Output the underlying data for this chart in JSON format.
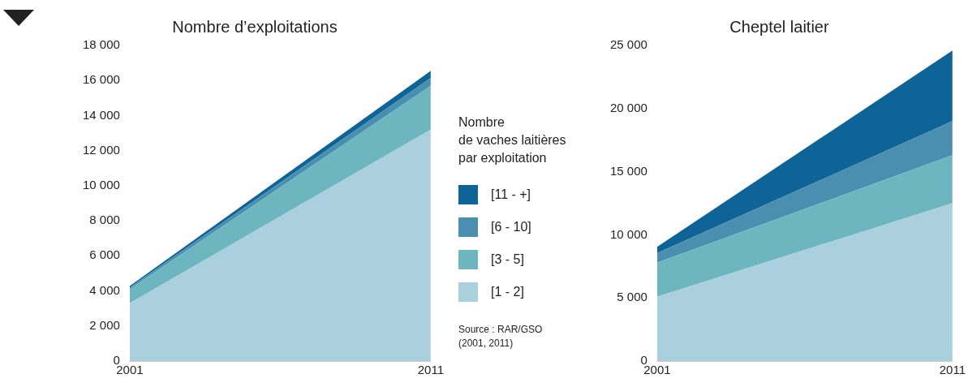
{
  "chart_data": [
    {
      "type": "area",
      "title": "Nombre d’exploitations",
      "stacked": true,
      "x": [
        "2001",
        "2011"
      ],
      "xlim": [
        "2001",
        "2011"
      ],
      "xticks": [
        "2001",
        "2011"
      ],
      "ylim": [
        0,
        18000
      ],
      "yticks": [
        {
          "value": 0,
          "label": "0"
        },
        {
          "value": 2000,
          "label": "2 000"
        },
        {
          "value": 4000,
          "label": "4 000"
        },
        {
          "value": 6000,
          "label": "6 000"
        },
        {
          "value": 8000,
          "label": "8 000"
        },
        {
          "value": 10000,
          "label": "10 000"
        },
        {
          "value": 12000,
          "label": "12 000"
        },
        {
          "value": 14000,
          "label": "14 000"
        },
        {
          "value": 16000,
          "label": "16 000"
        },
        {
          "value": 18000,
          "label": "18 000"
        }
      ],
      "grid": false,
      "legend": "right",
      "legend_title": "Nombre\nde vaches laitières\npar exploitation",
      "annotations": [
        "Source : RAR/GSO\n(2001, 2011)"
      ],
      "series": [
        {
          "name": "[1 - 2]",
          "color": "#aad0dd",
          "values": [
            3300,
            13200
          ]
        },
        {
          "name": "[3 - 5]",
          "color": "#6db6bf",
          "values": [
            800,
            2500
          ]
        },
        {
          "name": "[6 - 10]",
          "color": "#4a8fb0",
          "values": [
            100,
            450
          ]
        },
        {
          "name": "[11 - +]",
          "color": "#0e6497",
          "values": [
            80,
            400
          ]
        }
      ]
    },
    {
      "type": "area",
      "title": "Cheptel laitier",
      "stacked": true,
      "x": [
        "2001",
        "2011"
      ],
      "xlim": [
        "2001",
        "2011"
      ],
      "xticks": [
        "2001",
        "2011"
      ],
      "ylim": [
        0,
        25000
      ],
      "yticks": [
        {
          "value": 0,
          "label": "0"
        },
        {
          "value": 5000,
          "label": "5 000"
        },
        {
          "value": 10000,
          "label": "10 000"
        },
        {
          "value": 15000,
          "label": "15 000"
        },
        {
          "value": 20000,
          "label": "20 000"
        },
        {
          "value": 25000,
          "label": "25 000"
        }
      ],
      "grid": false,
      "legend": false,
      "series": [
        {
          "color": "#aad0dd",
          "values": [
            5100,
            12500
          ]
        },
        {
          "color": "#6db6bf",
          "values": [
            2700,
            3800
          ]
        },
        {
          "color": "#4a8fb0",
          "values": [
            750,
            2700
          ]
        },
        {
          "color": "#0e6497",
          "values": [
            500,
            5600
          ]
        }
      ]
    }
  ]
}
